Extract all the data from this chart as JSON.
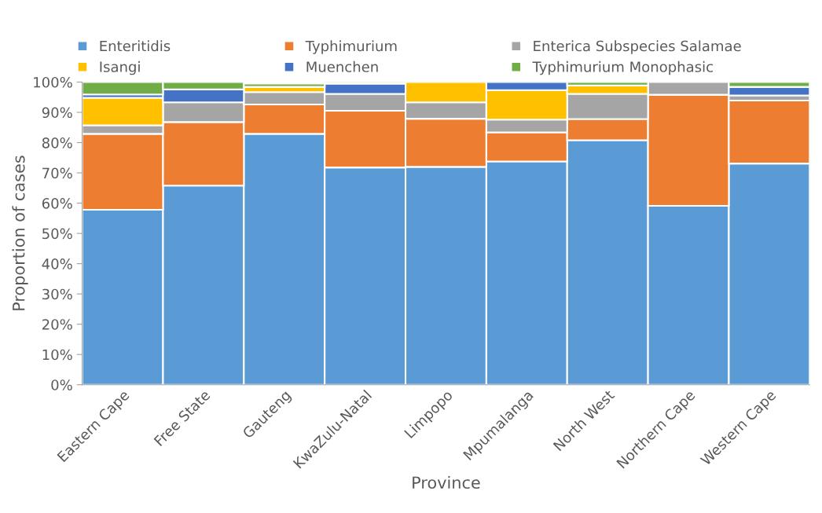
{
  "chart_data": {
    "type": "bar",
    "stacked": true,
    "xlabel": "Province",
    "ylabel": "Proportion of cases",
    "categories": [
      "Eastern Cape",
      "Free State",
      "Gauteng",
      "KwaZulu-Natal",
      "Limpopo",
      "Mpumalanga",
      "North West",
      "Northern Cape",
      "Western Cape"
    ],
    "series": [
      {
        "name": "Enteritidis",
        "color": "#5b9bd5",
        "values": [
          57.8,
          65.8,
          82.9,
          71.8,
          72.0,
          73.8,
          80.8,
          59.1,
          73.1
        ]
      },
      {
        "name": "Typhimurium",
        "color": "#ed7d31",
        "values": [
          25.1,
          21.0,
          9.7,
          18.7,
          15.9,
          9.6,
          7.0,
          36.7,
          20.8
        ]
      },
      {
        "name": "Enterica Subspecies Salamae",
        "color": "#a5a5a5",
        "values": [
          2.8,
          6.5,
          4.1,
          5.6,
          5.4,
          4.2,
          8.3,
          4.2,
          1.7
        ]
      },
      {
        "name": "Isangi",
        "color": "#ffc000",
        "values": [
          9.1,
          0,
          1.7,
          0,
          6.7,
          9.7,
          2.8,
          0,
          0
        ]
      },
      {
        "name": "Muenchen",
        "color": "#4472c4",
        "values": [
          1.1,
          4.3,
          null,
          3.4,
          0,
          2.7,
          0,
          0,
          2.8
        ]
      },
      {
        "name": "Typhimurium Monophasic",
        "color": "#70ad47",
        "values": [
          4.1,
          2.4,
          1.1,
          0.5,
          0,
          0,
          1.1,
          0,
          1.6
        ]
      }
    ],
    "ylim": [
      0,
      100
    ],
    "yticks": [
      {
        "value": 0,
        "label": "0%"
      },
      {
        "value": 10,
        "label": "10%"
      },
      {
        "value": 20,
        "label": "20%"
      },
      {
        "value": 30,
        "label": "30%"
      },
      {
        "value": 40,
        "label": "40%"
      },
      {
        "value": 50,
        "label": "50%"
      },
      {
        "value": 60,
        "label": "60%"
      },
      {
        "value": 70,
        "label": "70%"
      },
      {
        "value": 80,
        "label": "80%"
      },
      {
        "value": 90,
        "label": "90%"
      },
      {
        "value": 100,
        "label": "100%"
      }
    ],
    "legend": "top"
  }
}
